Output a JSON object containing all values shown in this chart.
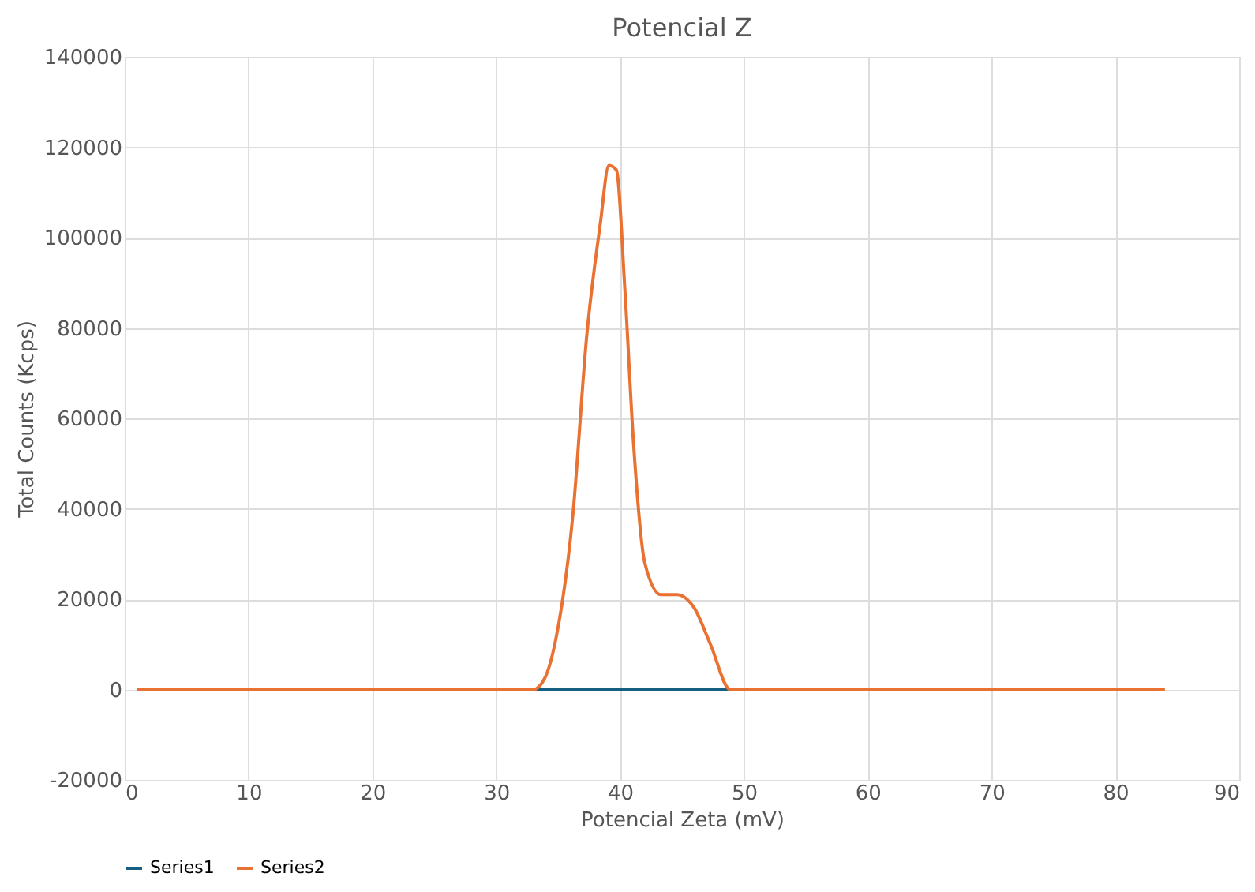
{
  "chart_data": {
    "type": "line",
    "title": "Potencial Z",
    "xlabel": "Potencial Zeta (mV)",
    "ylabel": "Total Counts (Kcps)",
    "xlim": [
      0,
      90
    ],
    "xticks": [
      0,
      10,
      20,
      30,
      40,
      50,
      60,
      70,
      80,
      90
    ],
    "ylim": [
      -20000,
      140000
    ],
    "yticks": [
      -20000,
      0,
      20000,
      40000,
      60000,
      80000,
      100000,
      120000,
      140000
    ],
    "grid": true,
    "legend": "bottom",
    "marker": "none",
    "line_style": "solid",
    "series": [
      {
        "name": "Series1",
        "color": "#156082",
        "x": [
          33,
          49
        ],
        "values": [
          0,
          0
        ]
      },
      {
        "name": "Series2",
        "color": "#e97132",
        "x": [
          1,
          33,
          33.9,
          34.8,
          36.2,
          37.3,
          38.4,
          39.1,
          39.7,
          40.4,
          41.1,
          42,
          43.3,
          44.6,
          46,
          47.3,
          48.9,
          84
        ],
        "values": [
          0,
          0,
          2400,
          11000,
          39000,
          78000,
          103000,
          116000,
          115000,
          88000,
          54000,
          28000,
          21000,
          21000,
          18000,
          10000,
          0,
          0
        ]
      }
    ]
  }
}
